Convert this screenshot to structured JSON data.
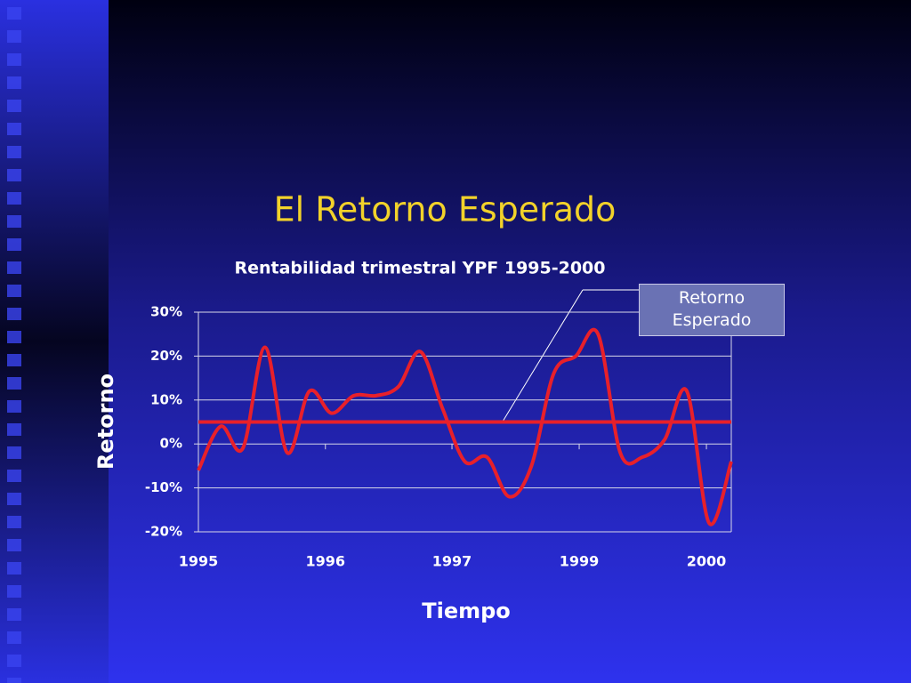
{
  "slide": {
    "title": "El Retorno Esperado"
  },
  "chart_data": {
    "type": "line",
    "title": "Rentabilidad trimestral YPF 1995-2000",
    "y_label": "Retorno",
    "x_label": "Tiempo",
    "x": [
      0,
      1,
      2,
      3,
      4,
      5,
      6,
      7,
      8,
      9,
      10,
      11,
      12,
      13,
      14,
      15,
      16,
      17,
      18,
      19,
      20,
      21,
      22,
      23,
      24
    ],
    "series": [
      {
        "color": "#e8202a",
        "values": [
          -6,
          4,
          -1,
          22,
          -2,
          12,
          7,
          11,
          11,
          13,
          21,
          8,
          -4,
          -3,
          -12,
          -5,
          16,
          20,
          25,
          -2,
          -3,
          1,
          12,
          -18,
          -4
        ]
      }
    ],
    "xlim": [
      0,
      24
    ],
    "xticks": [
      {
        "value": 0,
        "label": "1995"
      },
      {
        "value": 5.72,
        "label": "1996"
      },
      {
        "value": 11.42,
        "label": "1997"
      },
      {
        "value": 17.15,
        "label": "1999"
      },
      {
        "value": 22.88,
        "label": "2000"
      }
    ],
    "ylim": [
      -20,
      30
    ],
    "yticks": [
      {
        "value": -20,
        "label": "-20%"
      },
      {
        "value": -10,
        "label": "-10%"
      },
      {
        "value": 0,
        "label": "0%"
      },
      {
        "value": 10,
        "label": "10%"
      },
      {
        "value": 20,
        "label": "20%"
      },
      {
        "value": 30,
        "label": "30%"
      }
    ],
    "reference_line": {
      "value": 5,
      "label": "Retorno Esperado",
      "color": "#e8202a"
    },
    "grid": true
  }
}
